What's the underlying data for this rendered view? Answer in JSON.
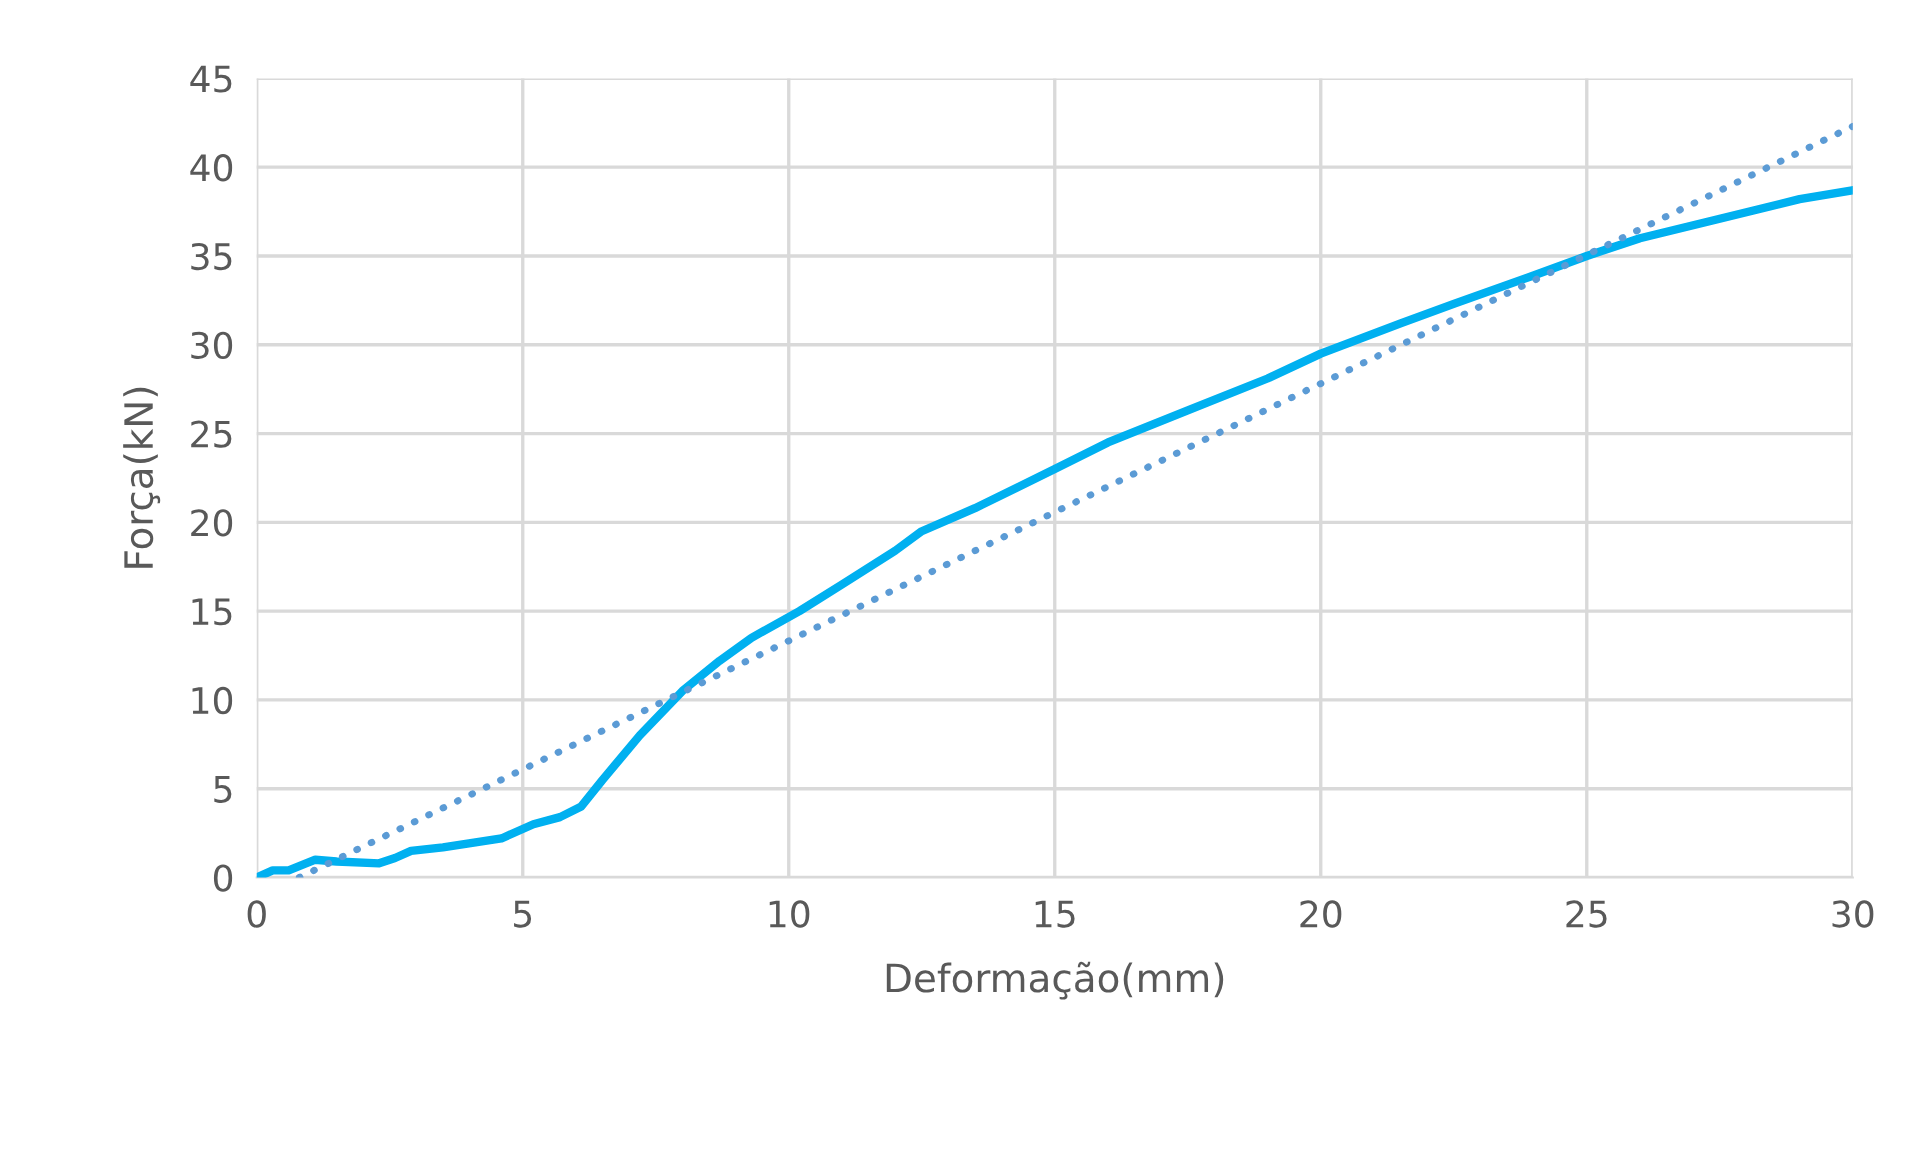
{
  "chart_data": {
    "type": "line",
    "xlabel": "Deformação(mm)",
    "ylabel": "Força(kN)",
    "xlim": [
      0,
      30
    ],
    "ylim": [
      0,
      45
    ],
    "xticks": [
      0,
      5,
      10,
      15,
      20,
      25,
      30
    ],
    "yticks": [
      0,
      5,
      10,
      15,
      20,
      25,
      30,
      35,
      40,
      45
    ],
    "grid": true,
    "series": [
      {
        "color": "#00b0f0",
        "line_style": "solid",
        "x": [
          0,
          0.3,
          0.6,
          1.1,
          1.5,
          2.3,
          2.6,
          2.9,
          3.5,
          4.6,
          5.2,
          5.7,
          6.1,
          6.5,
          7.2,
          8,
          8.7,
          9.3,
          10.2,
          11,
          12,
          12.5,
          13.5,
          15,
          16,
          17.5,
          19,
          20,
          21.5,
          22.5,
          24,
          25,
          26,
          27.5,
          29,
          30
        ],
        "values": [
          0,
          0.4,
          0.4,
          1.0,
          0.9,
          0.8,
          1.1,
          1.5,
          1.7,
          2.2,
          3.0,
          3.4,
          4.0,
          5.5,
          8.0,
          10.5,
          12.2,
          13.5,
          15,
          16.5,
          18.4,
          19.5,
          20.8,
          23,
          24.5,
          26.3,
          28.1,
          29.5,
          31.2,
          32.3,
          33.9,
          35,
          36,
          37.1,
          38.2,
          38.7
        ]
      },
      {
        "color": "#5b9bd5",
        "line_style": "dotted",
        "x": [
          0.8,
          30
        ],
        "values": [
          0,
          42.3
        ]
      }
    ]
  }
}
